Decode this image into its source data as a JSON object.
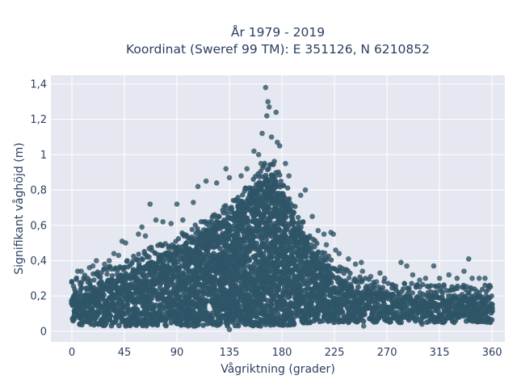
{
  "chart_data": {
    "type": "scatter",
    "title_lines": [
      "År 1979 - 2019",
      "Koordinat (Sweref 99 TM): E 351126, N 6210852"
    ],
    "xlabel": "Vågriktning (grader)",
    "ylabel": "Signifikant våghöjd (m)",
    "x_ticks": [
      0,
      45,
      90,
      135,
      180,
      225,
      270,
      315,
      360
    ],
    "x_tick_labels": [
      "0",
      "45",
      "90",
      "135",
      "180",
      "225",
      "270",
      "315",
      "360"
    ],
    "y_ticks": [
      0,
      0.2,
      0.4,
      0.6,
      0.8,
      1.0,
      1.2,
      1.4
    ],
    "y_tick_labels": [
      "0",
      "0,2",
      "0,4",
      "0,6",
      "0,8",
      "1",
      "1,2",
      "1,4"
    ],
    "xlim": [
      -18,
      371
    ],
    "ylim": [
      -0.06,
      1.45
    ],
    "grid": true,
    "marker_color": "#2f5467",
    "plot_background": "#e5e8f0",
    "envelope": {
      "x": [
        0,
        20,
        45,
        60,
        90,
        110,
        135,
        150,
        165,
        172,
        180,
        195,
        210,
        225,
        240,
        270,
        300,
        330,
        360
      ],
      "upper": [
        0.22,
        0.27,
        0.33,
        0.38,
        0.47,
        0.55,
        0.66,
        0.76,
        0.88,
        0.9,
        0.8,
        0.58,
        0.44,
        0.33,
        0.26,
        0.21,
        0.2,
        0.2,
        0.19
      ],
      "lower": [
        0.04,
        0.03,
        0.03,
        0.03,
        0.03,
        0.03,
        0.03,
        0.03,
        0.03,
        0.03,
        0.03,
        0.04,
        0.05,
        0.05,
        0.05,
        0.05,
        0.05,
        0.05,
        0.05
      ]
    },
    "outliers": [
      {
        "x": 166,
        "y": 1.38
      },
      {
        "x": 168,
        "y": 1.3
      },
      {
        "x": 169,
        "y": 1.27
      },
      {
        "x": 175,
        "y": 1.24
      },
      {
        "x": 167,
        "y": 1.22
      },
      {
        "x": 163,
        "y": 1.12
      },
      {
        "x": 171,
        "y": 1.1
      },
      {
        "x": 176,
        "y": 1.07
      },
      {
        "x": 178,
        "y": 1.05
      },
      {
        "x": 156,
        "y": 1.02
      },
      {
        "x": 160,
        "y": 1.0
      },
      {
        "x": 183,
        "y": 0.95
      },
      {
        "x": 150,
        "y": 0.92
      },
      {
        "x": 162,
        "y": 0.95
      },
      {
        "x": 186,
        "y": 0.88
      },
      {
        "x": 132,
        "y": 0.92
      },
      {
        "x": 135,
        "y": 0.87
      },
      {
        "x": 145,
        "y": 0.88
      },
      {
        "x": 115,
        "y": 0.85
      },
      {
        "x": 124,
        "y": 0.84
      },
      {
        "x": 108,
        "y": 0.82
      },
      {
        "x": 200,
        "y": 0.8
      },
      {
        "x": 196,
        "y": 0.77
      },
      {
        "x": 104,
        "y": 0.73
      },
      {
        "x": 90,
        "y": 0.72
      },
      {
        "x": 67,
        "y": 0.72
      },
      {
        "x": 206,
        "y": 0.65
      },
      {
        "x": 198,
        "y": 0.62
      },
      {
        "x": 72,
        "y": 0.63
      },
      {
        "x": 78,
        "y": 0.62
      },
      {
        "x": 95,
        "y": 0.63
      },
      {
        "x": 85,
        "y": 0.61
      },
      {
        "x": 60,
        "y": 0.59
      },
      {
        "x": 57,
        "y": 0.55
      },
      {
        "x": 63,
        "y": 0.54
      },
      {
        "x": 211,
        "y": 0.57
      },
      {
        "x": 216,
        "y": 0.55
      },
      {
        "x": 222,
        "y": 0.56
      },
      {
        "x": 224,
        "y": 0.55
      },
      {
        "x": 218,
        "y": 0.49
      },
      {
        "x": 226,
        "y": 0.46
      },
      {
        "x": 229,
        "y": 0.44
      },
      {
        "x": 43,
        "y": 0.51
      },
      {
        "x": 46,
        "y": 0.5
      },
      {
        "x": 36,
        "y": 0.44
      },
      {
        "x": 40,
        "y": 0.43
      },
      {
        "x": 32,
        "y": 0.4
      },
      {
        "x": 21,
        "y": 0.4
      },
      {
        "x": 28,
        "y": 0.38
      },
      {
        "x": 15,
        "y": 0.36
      },
      {
        "x": 18,
        "y": 0.37
      },
      {
        "x": 5,
        "y": 0.34
      },
      {
        "x": 8,
        "y": 0.34
      },
      {
        "x": 10,
        "y": 0.3
      },
      {
        "x": 237,
        "y": 0.41
      },
      {
        "x": 243,
        "y": 0.38
      },
      {
        "x": 248,
        "y": 0.39
      },
      {
        "x": 249,
        "y": 0.34
      },
      {
        "x": 256,
        "y": 0.31
      },
      {
        "x": 261,
        "y": 0.28
      },
      {
        "x": 264,
        "y": 0.33
      },
      {
        "x": 268,
        "y": 0.3
      },
      {
        "x": 282,
        "y": 0.39
      },
      {
        "x": 287,
        "y": 0.37
      },
      {
        "x": 292,
        "y": 0.32
      },
      {
        "x": 298,
        "y": 0.29
      },
      {
        "x": 303,
        "y": 0.3
      },
      {
        "x": 310,
        "y": 0.37
      },
      {
        "x": 315,
        "y": 0.3
      },
      {
        "x": 323,
        "y": 0.32
      },
      {
        "x": 330,
        "y": 0.3
      },
      {
        "x": 336,
        "y": 0.34
      },
      {
        "x": 340,
        "y": 0.41
      },
      {
        "x": 343,
        "y": 0.3
      },
      {
        "x": 349,
        "y": 0.3
      },
      {
        "x": 354,
        "y": 0.3
      },
      {
        "x": 358,
        "y": 0.26
      },
      {
        "x": 245,
        "y": 0.22
      },
      {
        "x": 275,
        "y": 0.26
      },
      {
        "x": 355,
        "y": 0.2
      },
      {
        "x": 250,
        "y": 0.03
      },
      {
        "x": 300,
        "y": 0.04
      },
      {
        "x": 135,
        "y": 0.01
      }
    ]
  }
}
